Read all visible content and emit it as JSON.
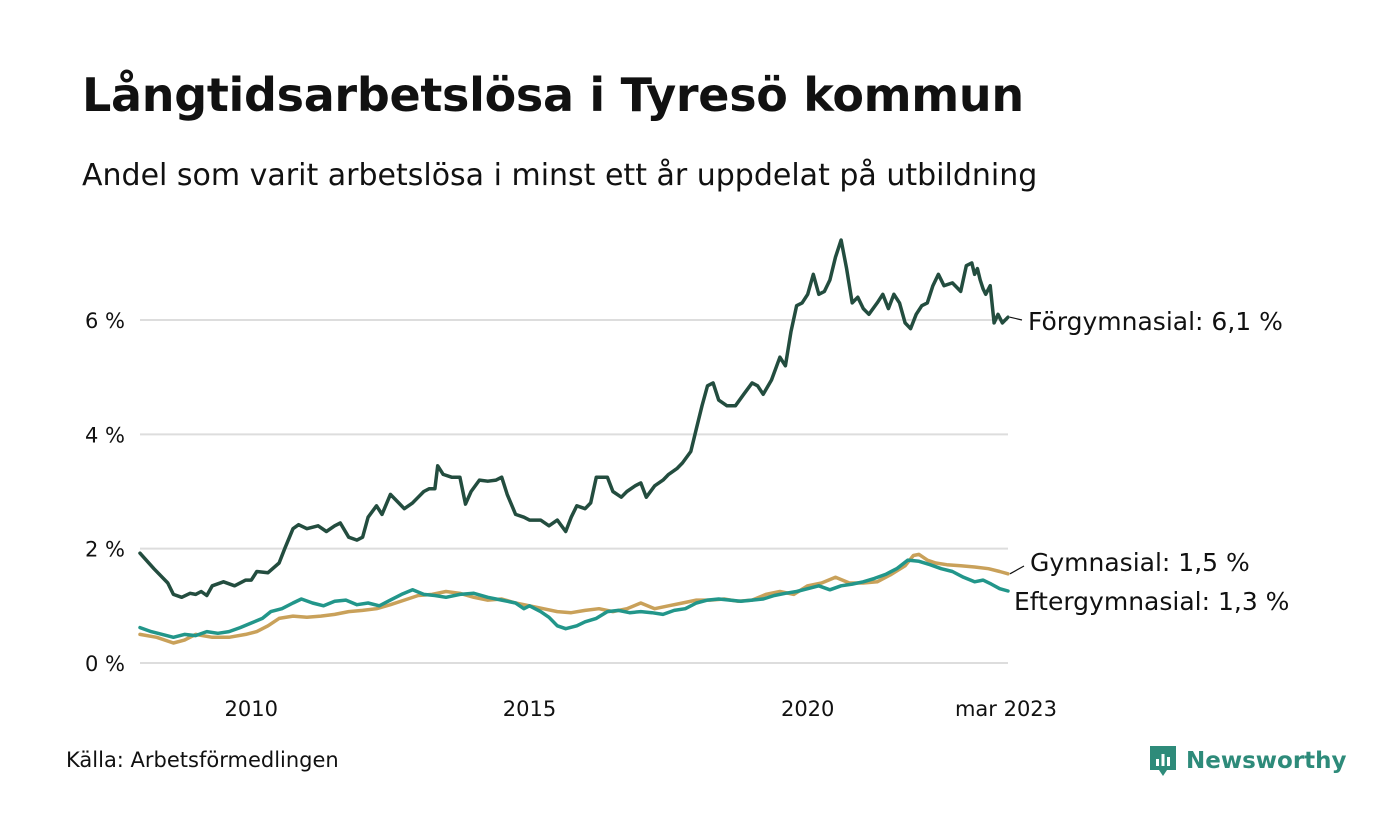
{
  "title": "Långtidsarbetslösa i Tyresö kommun",
  "subtitle": "Andel som varit arbetslösa i minst ett år uppdelat på utbildning",
  "source": "Källa: Arbetsförmedlingen",
  "brand": {
    "name": "Newsworthy",
    "icon": "newsworthy-logo-icon",
    "color": "#2e8b7a"
  },
  "chart_data": {
    "type": "line",
    "title": "Långtidsarbetslösa i Tyresö kommun",
    "subtitle": "Andel som varit arbetslösa i minst ett år uppdelat på utbildning",
    "ylim": [
      0,
      7.4
    ],
    "yticks": [
      0,
      2,
      4,
      6
    ],
    "ytick_labels": [
      "0 %",
      "2 %",
      "4 %",
      "6 %"
    ],
    "xlim": [
      2008.0,
      2023.17
    ],
    "xticks": [
      2010,
      2015,
      2020,
      2023.17
    ],
    "xtick_labels": [
      "2010",
      "2015",
      "2020",
      "mar 2023"
    ],
    "grid": "horizontal",
    "series": [
      {
        "name": "Förgymnasial",
        "label": "Förgymnasial: 6,1 %",
        "color": "#234d3f",
        "points": [
          [
            2008.0,
            1.92
          ],
          [
            2008.25,
            1.65
          ],
          [
            2008.5,
            1.4
          ],
          [
            2008.6,
            1.2
          ],
          [
            2008.75,
            1.15
          ],
          [
            2008.9,
            1.22
          ],
          [
            2009.0,
            1.2
          ],
          [
            2009.1,
            1.25
          ],
          [
            2009.2,
            1.18
          ],
          [
            2009.3,
            1.35
          ],
          [
            2009.5,
            1.42
          ],
          [
            2009.7,
            1.35
          ],
          [
            2009.9,
            1.45
          ],
          [
            2010.0,
            1.45
          ],
          [
            2010.1,
            1.6
          ],
          [
            2010.3,
            1.58
          ],
          [
            2010.5,
            1.75
          ],
          [
            2010.6,
            2.0
          ],
          [
            2010.75,
            2.35
          ],
          [
            2010.85,
            2.42
          ],
          [
            2011.0,
            2.35
          ],
          [
            2011.2,
            2.4
          ],
          [
            2011.35,
            2.3
          ],
          [
            2011.5,
            2.4
          ],
          [
            2011.6,
            2.45
          ],
          [
            2011.75,
            2.2
          ],
          [
            2011.9,
            2.15
          ],
          [
            2012.0,
            2.2
          ],
          [
            2012.1,
            2.55
          ],
          [
            2012.25,
            2.75
          ],
          [
            2012.35,
            2.6
          ],
          [
            2012.5,
            2.95
          ],
          [
            2012.65,
            2.8
          ],
          [
            2012.75,
            2.7
          ],
          [
            2012.9,
            2.8
          ],
          [
            2013.0,
            2.9
          ],
          [
            2013.1,
            3.0
          ],
          [
            2013.2,
            3.05
          ],
          [
            2013.3,
            3.05
          ],
          [
            2013.35,
            3.45
          ],
          [
            2013.45,
            3.3
          ],
          [
            2013.6,
            3.25
          ],
          [
            2013.75,
            3.25
          ],
          [
            2013.85,
            2.78
          ],
          [
            2013.95,
            3.0
          ],
          [
            2014.1,
            3.2
          ],
          [
            2014.25,
            3.18
          ],
          [
            2014.4,
            3.2
          ],
          [
            2014.5,
            3.25
          ],
          [
            2014.6,
            2.95
          ],
          [
            2014.75,
            2.6
          ],
          [
            2014.9,
            2.55
          ],
          [
            2015.0,
            2.5
          ],
          [
            2015.2,
            2.5
          ],
          [
            2015.35,
            2.4
          ],
          [
            2015.5,
            2.5
          ],
          [
            2015.65,
            2.3
          ],
          [
            2015.75,
            2.55
          ],
          [
            2015.85,
            2.75
          ],
          [
            2016.0,
            2.7
          ],
          [
            2016.1,
            2.8
          ],
          [
            2016.2,
            3.25
          ],
          [
            2016.4,
            3.25
          ],
          [
            2016.5,
            3.0
          ],
          [
            2016.65,
            2.9
          ],
          [
            2016.75,
            3.0
          ],
          [
            2016.9,
            3.1
          ],
          [
            2017.0,
            3.15
          ],
          [
            2017.1,
            2.9
          ],
          [
            2017.25,
            3.1
          ],
          [
            2017.4,
            3.2
          ],
          [
            2017.5,
            3.3
          ],
          [
            2017.65,
            3.4
          ],
          [
            2017.75,
            3.5
          ],
          [
            2017.9,
            3.7
          ],
          [
            2018.0,
            4.1
          ],
          [
            2018.1,
            4.5
          ],
          [
            2018.2,
            4.85
          ],
          [
            2018.3,
            4.9
          ],
          [
            2018.4,
            4.6
          ],
          [
            2018.55,
            4.5
          ],
          [
            2018.7,
            4.5
          ],
          [
            2018.85,
            4.7
          ],
          [
            2019.0,
            4.9
          ],
          [
            2019.1,
            4.85
          ],
          [
            2019.2,
            4.7
          ],
          [
            2019.35,
            4.95
          ],
          [
            2019.5,
            5.35
          ],
          [
            2019.6,
            5.2
          ],
          [
            2019.7,
            5.8
          ],
          [
            2019.8,
            6.25
          ],
          [
            2019.9,
            6.3
          ],
          [
            2020.0,
            6.45
          ],
          [
            2020.1,
            6.8
          ],
          [
            2020.2,
            6.45
          ],
          [
            2020.3,
            6.5
          ],
          [
            2020.4,
            6.7
          ],
          [
            2020.5,
            7.1
          ],
          [
            2020.6,
            7.4
          ],
          [
            2020.7,
            6.9
          ],
          [
            2020.8,
            6.3
          ],
          [
            2020.9,
            6.4
          ],
          [
            2021.0,
            6.2
          ],
          [
            2021.1,
            6.1
          ],
          [
            2021.25,
            6.3
          ],
          [
            2021.35,
            6.45
          ],
          [
            2021.45,
            6.2
          ],
          [
            2021.55,
            6.45
          ],
          [
            2021.65,
            6.3
          ],
          [
            2021.75,
            5.95
          ],
          [
            2021.85,
            5.85
          ],
          [
            2021.95,
            6.1
          ],
          [
            2022.05,
            6.25
          ],
          [
            2022.15,
            6.3
          ],
          [
            2022.25,
            6.6
          ],
          [
            2022.35,
            6.8
          ],
          [
            2022.45,
            6.6
          ],
          [
            2022.6,
            6.65
          ],
          [
            2022.75,
            6.5
          ],
          [
            2022.85,
            6.95
          ],
          [
            2022.95,
            7.0
          ],
          [
            2023.0,
            6.8
          ],
          [
            2023.05,
            6.9
          ],
          [
            2023.1,
            6.7
          ],
          [
            2023.15,
            6.55
          ],
          [
            2023.2,
            6.45
          ],
          [
            2023.28,
            6.6
          ],
          [
            2023.35,
            5.95
          ],
          [
            2023.42,
            6.1
          ],
          [
            2023.5,
            5.95
          ],
          [
            2023.6,
            6.05
          ]
        ]
      },
      {
        "name": "Gymnasial",
        "label": "Gymnasial: 1,5 %",
        "color": "#c9a15a",
        "points": [
          [
            2008.0,
            0.5
          ],
          [
            2008.3,
            0.45
          ],
          [
            2008.6,
            0.35
          ],
          [
            2008.8,
            0.4
          ],
          [
            2009.0,
            0.5
          ],
          [
            2009.3,
            0.45
          ],
          [
            2009.6,
            0.45
          ],
          [
            2009.9,
            0.5
          ],
          [
            2010.1,
            0.55
          ],
          [
            2010.3,
            0.65
          ],
          [
            2010.5,
            0.78
          ],
          [
            2010.75,
            0.82
          ],
          [
            2011.0,
            0.8
          ],
          [
            2011.25,
            0.82
          ],
          [
            2011.5,
            0.85
          ],
          [
            2011.75,
            0.9
          ],
          [
            2012.0,
            0.92
          ],
          [
            2012.25,
            0.95
          ],
          [
            2012.5,
            1.02
          ],
          [
            2012.75,
            1.1
          ],
          [
            2013.0,
            1.18
          ],
          [
            2013.25,
            1.2
          ],
          [
            2013.5,
            1.25
          ],
          [
            2013.75,
            1.22
          ],
          [
            2014.0,
            1.15
          ],
          [
            2014.25,
            1.1
          ],
          [
            2014.5,
            1.12
          ],
          [
            2014.75,
            1.05
          ],
          [
            2015.0,
            1.0
          ],
          [
            2015.25,
            0.95
          ],
          [
            2015.5,
            0.9
          ],
          [
            2015.75,
            0.88
          ],
          [
            2016.0,
            0.92
          ],
          [
            2016.25,
            0.95
          ],
          [
            2016.5,
            0.9
          ],
          [
            2016.75,
            0.95
          ],
          [
            2017.0,
            1.05
          ],
          [
            2017.25,
            0.95
          ],
          [
            2017.5,
            1.0
          ],
          [
            2017.75,
            1.05
          ],
          [
            2018.0,
            1.1
          ],
          [
            2018.25,
            1.1
          ],
          [
            2018.5,
            1.12
          ],
          [
            2018.75,
            1.08
          ],
          [
            2019.0,
            1.1
          ],
          [
            2019.25,
            1.2
          ],
          [
            2019.5,
            1.25
          ],
          [
            2019.75,
            1.2
          ],
          [
            2020.0,
            1.35
          ],
          [
            2020.25,
            1.4
          ],
          [
            2020.5,
            1.5
          ],
          [
            2020.75,
            1.4
          ],
          [
            2021.0,
            1.4
          ],
          [
            2021.25,
            1.42
          ],
          [
            2021.5,
            1.55
          ],
          [
            2021.75,
            1.7
          ],
          [
            2021.9,
            1.88
          ],
          [
            2022.0,
            1.9
          ],
          [
            2022.15,
            1.8
          ],
          [
            2022.3,
            1.75
          ],
          [
            2022.5,
            1.72
          ],
          [
            2022.75,
            1.7
          ],
          [
            2023.0,
            1.68
          ],
          [
            2023.25,
            1.65
          ],
          [
            2023.45,
            1.6
          ],
          [
            2023.6,
            1.56
          ]
        ]
      },
      {
        "name": "Eftergymnasial",
        "label": "Eftergymnasial: 1,3 %",
        "color": "#22968a",
        "points": [
          [
            2008.0,
            0.62
          ],
          [
            2008.2,
            0.55
          ],
          [
            2008.4,
            0.5
          ],
          [
            2008.6,
            0.45
          ],
          [
            2008.8,
            0.5
          ],
          [
            2009.0,
            0.48
          ],
          [
            2009.2,
            0.55
          ],
          [
            2009.4,
            0.52
          ],
          [
            2009.6,
            0.55
          ],
          [
            2009.8,
            0.62
          ],
          [
            2010.0,
            0.7
          ],
          [
            2010.2,
            0.78
          ],
          [
            2010.35,
            0.9
          ],
          [
            2010.55,
            0.95
          ],
          [
            2010.75,
            1.05
          ],
          [
            2010.9,
            1.12
          ],
          [
            2011.1,
            1.05
          ],
          [
            2011.3,
            1.0
          ],
          [
            2011.5,
            1.08
          ],
          [
            2011.7,
            1.1
          ],
          [
            2011.9,
            1.02
          ],
          [
            2012.1,
            1.05
          ],
          [
            2012.3,
            1.0
          ],
          [
            2012.5,
            1.1
          ],
          [
            2012.7,
            1.2
          ],
          [
            2012.9,
            1.28
          ],
          [
            2013.1,
            1.2
          ],
          [
            2013.3,
            1.18
          ],
          [
            2013.5,
            1.15
          ],
          [
            2013.75,
            1.2
          ],
          [
            2014.0,
            1.22
          ],
          [
            2014.25,
            1.15
          ],
          [
            2014.5,
            1.1
          ],
          [
            2014.75,
            1.05
          ],
          [
            2014.9,
            0.95
          ],
          [
            2015.0,
            1.0
          ],
          [
            2015.2,
            0.9
          ],
          [
            2015.35,
            0.8
          ],
          [
            2015.5,
            0.65
          ],
          [
            2015.65,
            0.6
          ],
          [
            2015.85,
            0.65
          ],
          [
            2016.0,
            0.72
          ],
          [
            2016.2,
            0.78
          ],
          [
            2016.4,
            0.9
          ],
          [
            2016.6,
            0.92
          ],
          [
            2016.8,
            0.88
          ],
          [
            2017.0,
            0.9
          ],
          [
            2017.2,
            0.88
          ],
          [
            2017.4,
            0.85
          ],
          [
            2017.6,
            0.92
          ],
          [
            2017.8,
            0.95
          ],
          [
            2018.0,
            1.05
          ],
          [
            2018.2,
            1.1
          ],
          [
            2018.4,
            1.12
          ],
          [
            2018.6,
            1.1
          ],
          [
            2018.8,
            1.08
          ],
          [
            2019.0,
            1.1
          ],
          [
            2019.2,
            1.12
          ],
          [
            2019.4,
            1.18
          ],
          [
            2019.6,
            1.22
          ],
          [
            2019.8,
            1.25
          ],
          [
            2020.0,
            1.3
          ],
          [
            2020.2,
            1.35
          ],
          [
            2020.4,
            1.28
          ],
          [
            2020.6,
            1.35
          ],
          [
            2020.8,
            1.38
          ],
          [
            2021.0,
            1.42
          ],
          [
            2021.2,
            1.48
          ],
          [
            2021.4,
            1.55
          ],
          [
            2021.6,
            1.65
          ],
          [
            2021.8,
            1.8
          ],
          [
            2022.0,
            1.78
          ],
          [
            2022.2,
            1.72
          ],
          [
            2022.4,
            1.65
          ],
          [
            2022.6,
            1.6
          ],
          [
            2022.8,
            1.5
          ],
          [
            2023.0,
            1.42
          ],
          [
            2023.15,
            1.45
          ],
          [
            2023.3,
            1.38
          ],
          [
            2023.45,
            1.3
          ],
          [
            2023.6,
            1.26
          ]
        ]
      }
    ]
  }
}
